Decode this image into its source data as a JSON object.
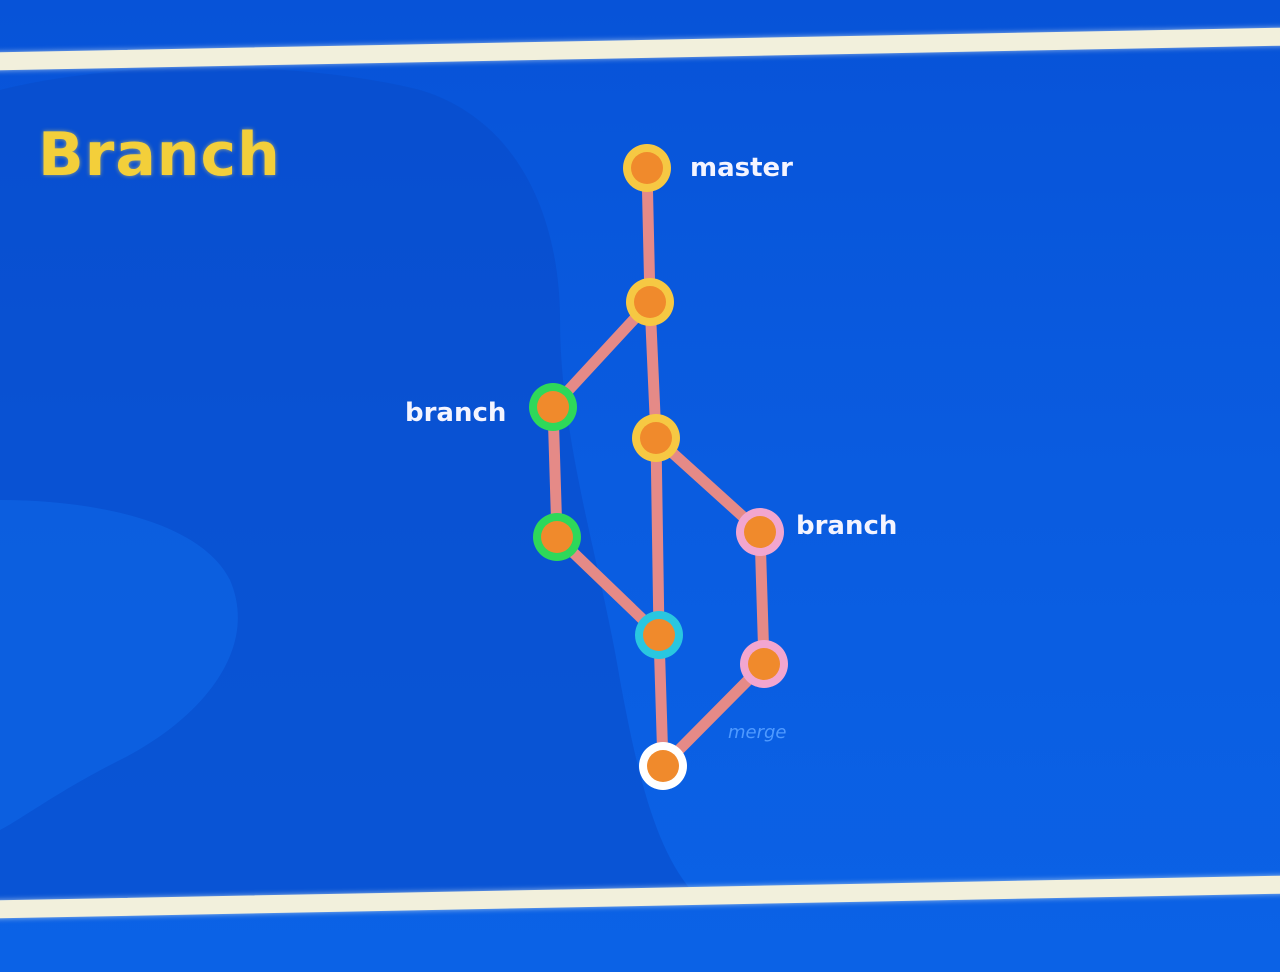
{
  "slide": {
    "title": "Branch"
  },
  "graph": {
    "labels": {
      "master": "master",
      "branch_left": "branch",
      "branch_right": "branch",
      "merge": "merge"
    },
    "colors": {
      "edge": "#e58a87",
      "node_fill": "#f08a2c",
      "ring_master": "#f6c843",
      "ring_left_branch": "#2ed85a",
      "ring_right_branch": "#f2a6cf",
      "ring_merge_target": "#29c7e0",
      "ring_merge_result": "#ffffff"
    }
  }
}
